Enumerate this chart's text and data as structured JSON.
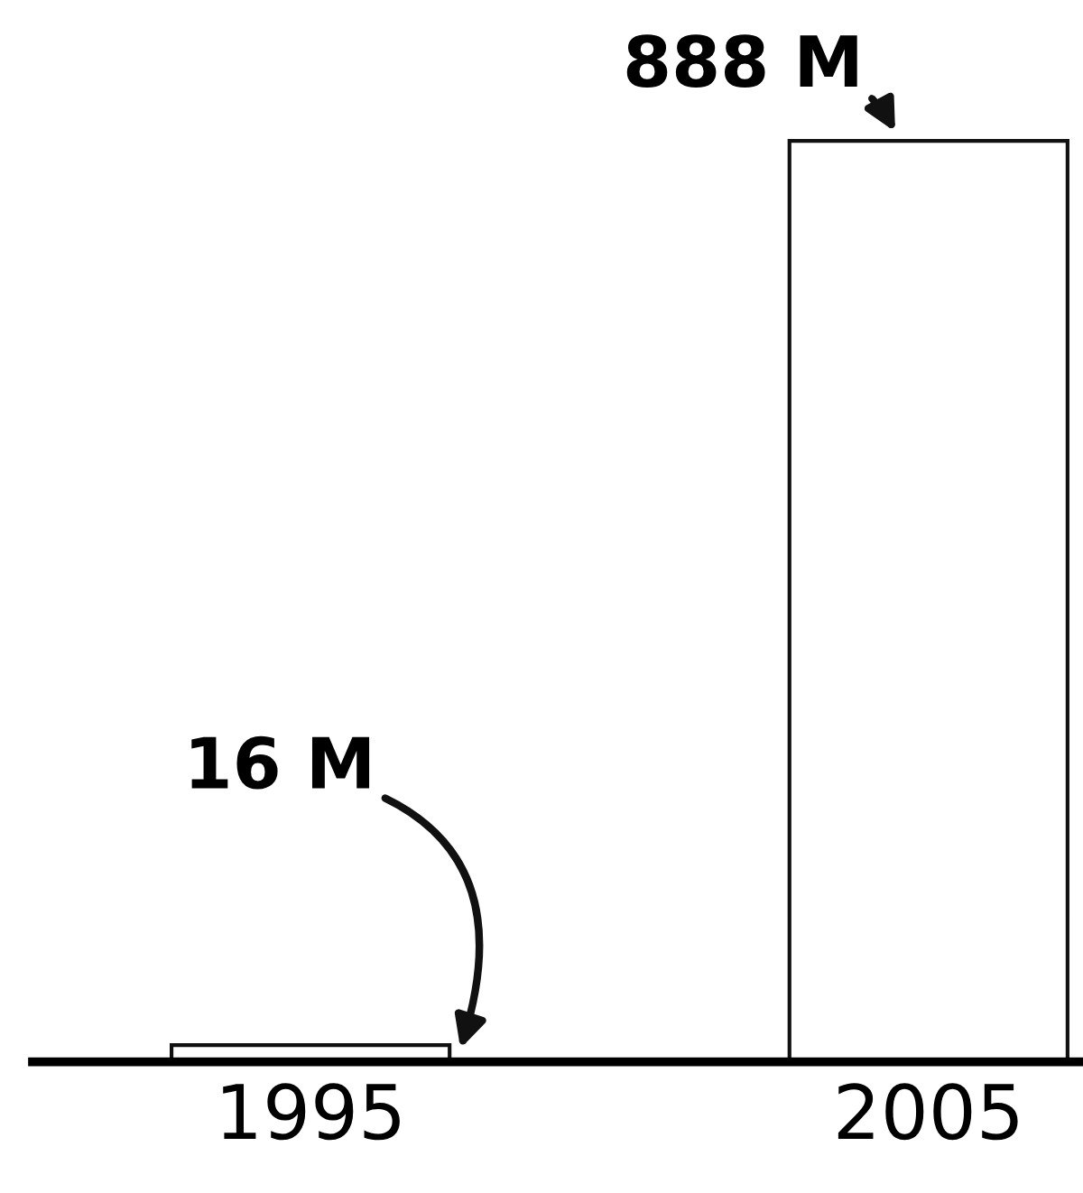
{
  "chart_data": {
    "type": "bar",
    "categories": [
      "1995",
      "2005"
    ],
    "values": [
      16,
      888
    ],
    "value_labels": [
      "16 M",
      "888 M"
    ],
    "color": "#ffffff",
    "tick_labels": "x",
    "grid": false
  }
}
